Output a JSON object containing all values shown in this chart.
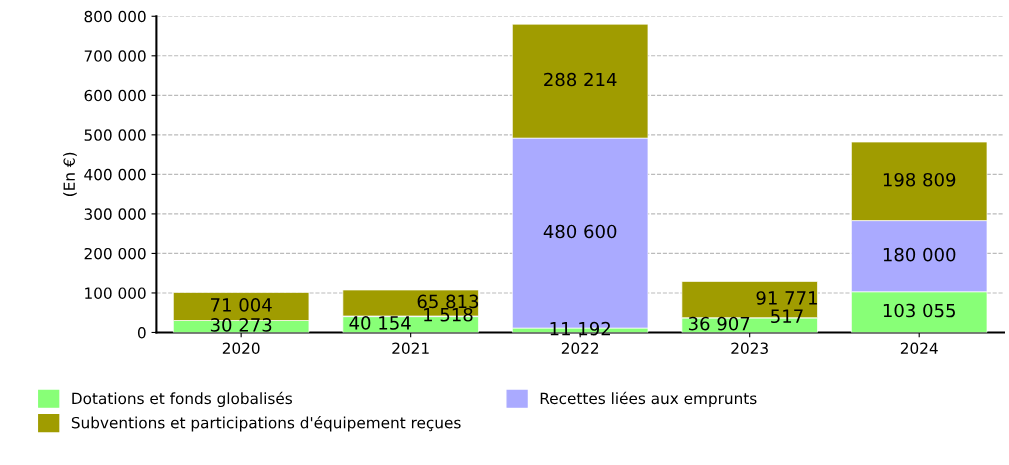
{
  "chart_data": {
    "type": "bar",
    "stacked": true,
    "ylabel": "(En €)",
    "categories": [
      "2020",
      "2021",
      "2022",
      "2023",
      "2024"
    ],
    "ylim": [
      0,
      800000
    ],
    "yticks": [
      {
        "value": 0,
        "label": "0"
      },
      {
        "value": 100000,
        "label": "100 000"
      },
      {
        "value": 200000,
        "label": "200 000"
      },
      {
        "value": 300000,
        "label": "300 000"
      },
      {
        "value": 400000,
        "label": "400 000"
      },
      {
        "value": 500000,
        "label": "500 000"
      },
      {
        "value": 600000,
        "label": "600 000"
      },
      {
        "value": 700000,
        "label": "700 000"
      },
      {
        "value": 800000,
        "label": "800 000"
      }
    ],
    "grid": "y",
    "legend": "bottom",
    "series": [
      {
        "name": "Dotations et fonds globalisés",
        "color": "#88ff77",
        "values": [
          30273,
          40154,
          11192,
          36907,
          103055
        ],
        "value_labels": [
          "30 273",
          "40 154",
          "11 192",
          "36 907",
          "103 055"
        ]
      },
      {
        "name": "Recettes liées aux emprunts",
        "color": "#aaaaff",
        "values": [
          0,
          1518,
          480600,
          517,
          180000
        ],
        "value_labels": [
          null,
          "1 518",
          "480 600",
          "517",
          "180 000"
        ]
      },
      {
        "name": "Subventions et participations d'équipement reçues",
        "color": "#a09c00",
        "values": [
          71004,
          65813,
          288214,
          91771,
          198809
        ],
        "value_labels": [
          "71 004",
          "65 813",
          "288 214",
          "91 771",
          "198 809"
        ]
      }
    ]
  }
}
